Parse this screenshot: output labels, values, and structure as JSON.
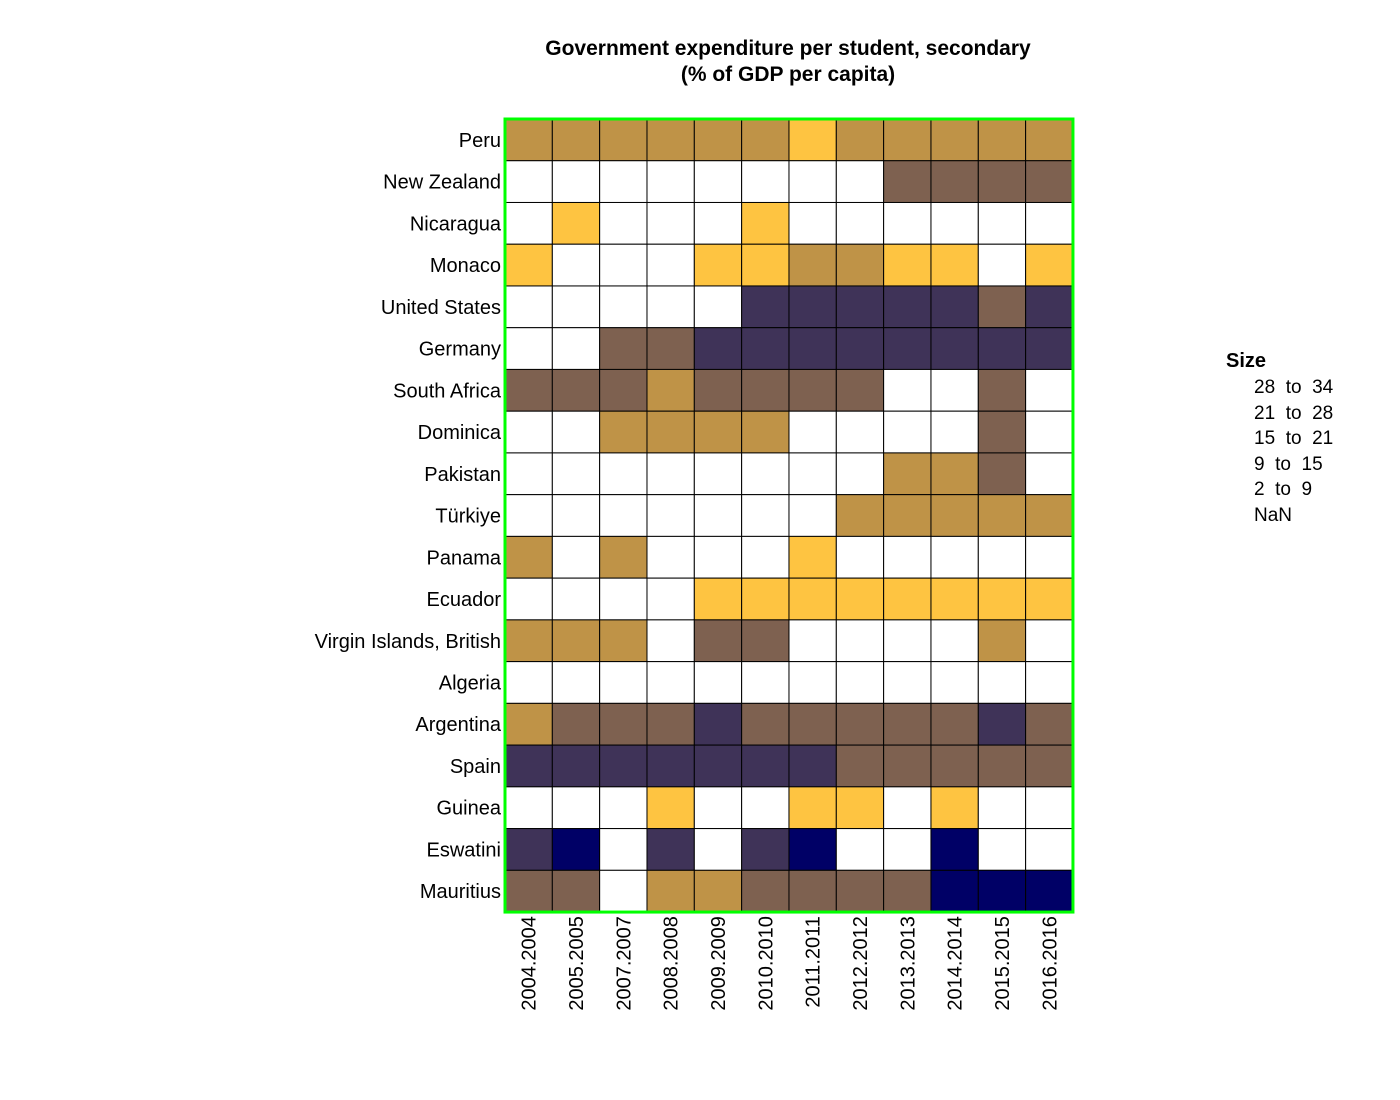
{
  "chart_data": {
    "type": "heatmap",
    "title": "Government expenditure per student, secondary",
    "subtitle": "(% of GDP per capita)",
    "rows": [
      "Peru",
      "New Zealand",
      "Nicaragua",
      "Monaco",
      "United States",
      "Germany",
      "South Africa",
      "Dominica",
      "Pakistan",
      "Türkiye",
      "Panama",
      "Ecuador",
      "Virgin Islands, British",
      "Algeria",
      "Argentina",
      "Spain",
      "Guinea",
      "Eswatini",
      "Mauritius"
    ],
    "columns": [
      "2004.2004",
      "2005.2005",
      "2007.2007",
      "2008.2008",
      "2009.2009",
      "2010.2010",
      "2011.2011",
      "2012.2012",
      "2013.2013",
      "2014.2014",
      "2015.2015",
      "2016.2016"
    ],
    "bins": [
      {
        "label": "28  to  34",
        "color": "#000066"
      },
      {
        "label": "21  to  28",
        "color": "#3f3358"
      },
      {
        "label": "15  to  21",
        "color": "#7e6150"
      },
      {
        "label": "9  to  15",
        "color": "#bf9347"
      },
      {
        "label": "2  to  9",
        "color": "#fec441"
      },
      {
        "label": "NaN",
        "color": "#ffffff"
      }
    ],
    "legend_title": "Size",
    "legend_position": "right",
    "grid_border_color": "#00ff00",
    "cells": [
      [
        3,
        3,
        3,
        3,
        3,
        3,
        4,
        3,
        3,
        3,
        3,
        3
      ],
      [
        5,
        5,
        5,
        5,
        5,
        5,
        5,
        5,
        2,
        2,
        2,
        2
      ],
      [
        5,
        4,
        5,
        5,
        5,
        4,
        5,
        5,
        5,
        5,
        5,
        5
      ],
      [
        4,
        5,
        5,
        5,
        4,
        4,
        3,
        3,
        4,
        4,
        5,
        4
      ],
      [
        5,
        5,
        5,
        5,
        5,
        1,
        1,
        1,
        1,
        1,
        2,
        1
      ],
      [
        5,
        5,
        2,
        2,
        1,
        1,
        1,
        1,
        1,
        1,
        1,
        1
      ],
      [
        2,
        2,
        2,
        3,
        2,
        2,
        2,
        2,
        5,
        5,
        2,
        5
      ],
      [
        5,
        5,
        3,
        3,
        3,
        3,
        5,
        5,
        5,
        5,
        2,
        5
      ],
      [
        5,
        5,
        5,
        5,
        5,
        5,
        5,
        5,
        3,
        3,
        2,
        5
      ],
      [
        5,
        5,
        5,
        5,
        5,
        5,
        5,
        3,
        3,
        3,
        3,
        3
      ],
      [
        3,
        5,
        3,
        5,
        5,
        5,
        4,
        5,
        5,
        5,
        5,
        5
      ],
      [
        5,
        5,
        5,
        5,
        4,
        4,
        4,
        4,
        4,
        4,
        4,
        4
      ],
      [
        3,
        3,
        3,
        5,
        2,
        2,
        5,
        5,
        5,
        5,
        3,
        5
      ],
      [
        5,
        5,
        5,
        5,
        5,
        5,
        5,
        5,
        5,
        5,
        5,
        5
      ],
      [
        3,
        2,
        2,
        2,
        1,
        2,
        2,
        2,
        2,
        2,
        1,
        2
      ],
      [
        1,
        1,
        1,
        1,
        1,
        1,
        1,
        2,
        2,
        2,
        2,
        2
      ],
      [
        5,
        5,
        5,
        4,
        5,
        5,
        4,
        4,
        5,
        4,
        5,
        5
      ],
      [
        1,
        0,
        5,
        1,
        5,
        1,
        0,
        5,
        5,
        0,
        5,
        5
      ],
      [
        2,
        2,
        5,
        3,
        3,
        2,
        2,
        2,
        2,
        0,
        0,
        0
      ]
    ]
  }
}
